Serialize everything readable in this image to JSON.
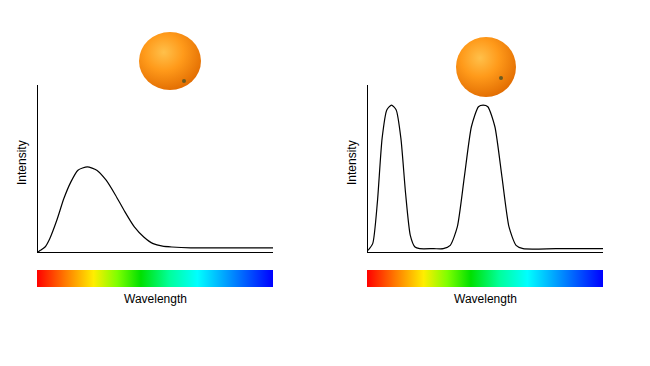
{
  "chart_data": [
    {
      "type": "line",
      "xlabel": "Wavelength",
      "ylabel": "Intensity",
      "color": "#000000",
      "x": [
        0,
        1,
        3,
        5,
        8,
        11,
        14,
        17,
        21,
        25,
        29,
        33,
        37,
        41,
        45,
        49,
        53,
        57,
        65,
        80,
        100
      ],
      "values": [
        0,
        1,
        3,
        8,
        19,
        32,
        42,
        49,
        51,
        49,
        43,
        34,
        24,
        15,
        9,
        5,
        3.5,
        3,
        2.5,
        2.5,
        2.5
      ],
      "xlim": [
        0,
        100
      ],
      "ylim": [
        0,
        100
      ],
      "xticks": [],
      "yticks": [],
      "tick_labels": false,
      "grid": false
    },
    {
      "type": "line",
      "xlabel": "Wavelength",
      "ylabel": "Intensity",
      "color": "#000000",
      "x": [
        0,
        2,
        4,
        6,
        8,
        10,
        12,
        14,
        16,
        18,
        20,
        22,
        28,
        32,
        35,
        38,
        41,
        44,
        47,
        49,
        51,
        54,
        57,
        60,
        63,
        66,
        80,
        100
      ],
      "values": [
        1,
        5,
        30,
        68,
        85,
        88,
        85,
        68,
        35,
        10,
        3,
        2,
        2,
        2,
        4,
        15,
        45,
        75,
        87,
        88,
        87,
        75,
        45,
        15,
        4,
        2,
        2,
        2
      ],
      "xlim": [
        0,
        100
      ],
      "ylim": [
        0,
        100
      ],
      "xticks": [],
      "yticks": [],
      "tick_labels": false,
      "grid": false
    }
  ]
}
